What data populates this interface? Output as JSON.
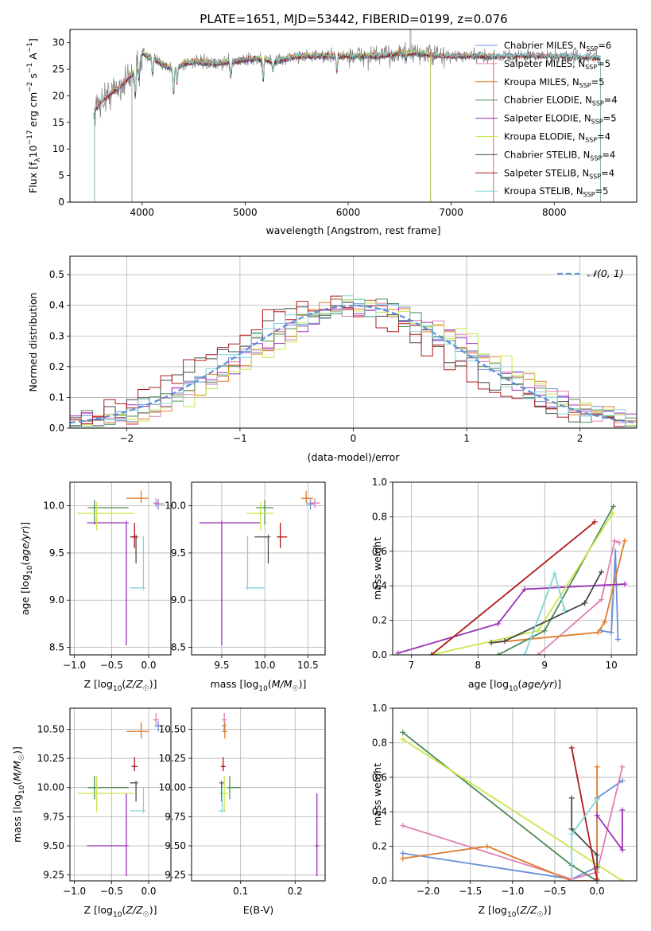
{
  "figure": {
    "title": "PLATE=1651, MJD=53442, FIBERID=0199, z=0.076"
  },
  "colors": {
    "Chabrier MILES": "#6a8fd8",
    "Salpeter MILES": "#e07fb4",
    "Kroupa MILES": "#e07b2a",
    "Chabrier ELODIE": "#4f8a58",
    "Salpeter ELODIE": "#9b30b8",
    "Kroupa ELODIE": "#c9e64a",
    "Chabrier STELIB": "#4a4a4a",
    "Salpeter STELIB": "#b01919",
    "Kroupa STELIB": "#7fd6d8",
    "gaussian": "#5b8fd6"
  },
  "chart_data": [
    {
      "id": "spectrum",
      "type": "line",
      "title": "PLATE=1651, MJD=53442, FIBERID=0199, z=0.076",
      "xlabel": "wavelength [Angstrom, rest frame]",
      "ylabel_parts": [
        "Flux [f",
        "λ",
        "10",
        "−17",
        " erg cm",
        "−2",
        " s",
        "−1",
        " A",
        "−1",
        "]"
      ],
      "xlim": [
        3300,
        8800
      ],
      "ylim": [
        0,
        32.5
      ],
      "xticks": [
        4000,
        5000,
        6000,
        7000,
        8000
      ],
      "yticks": [
        0,
        5,
        10,
        15,
        20,
        25,
        30
      ],
      "grid": false,
      "legend_position": "upper right",
      "legend": [
        {
          "model": "Chabrier MILES",
          "label": "Chabrier MILES, N",
          "sub": "SSP",
          "n": "=6"
        },
        {
          "model": "Salpeter MILES",
          "label": "Salpeter MILES, N",
          "sub": "SSP",
          "n": "=5"
        },
        {
          "model": "Kroupa MILES",
          "label": "Kroupa MILES, N",
          "sub": "SSP",
          "n": "=5"
        },
        {
          "model": "Chabrier ELODIE",
          "label": "Chabrier ELODIE, N",
          "sub": "SSP",
          "n": "=4"
        },
        {
          "model": "Salpeter ELODIE",
          "label": "Salpeter ELODIE, N",
          "sub": "SSP",
          "n": "=5"
        },
        {
          "model": "Kroupa ELODIE",
          "label": "Kroupa ELODIE, N",
          "sub": "SSP",
          "n": "=4"
        },
        {
          "model": "Chabrier STELIB",
          "label": "Chabrier STELIB, N",
          "sub": "SSP",
          "n": "=4"
        },
        {
          "model": "Salpeter STELIB",
          "label": "Salpeter STELIB, N",
          "sub": "SSP",
          "n": "=4"
        },
        {
          "model": "Kroupa STELIB",
          "label": "Kroupa STELIB, N",
          "sub": "SSP",
          "n": "=5"
        }
      ],
      "observed_continuum": {
        "wavelength": [
          3530,
          3600,
          3700,
          3800,
          3900,
          3960,
          4000,
          4100,
          4200,
          4300,
          4400,
          4500,
          4700,
          4900,
          5100,
          5300,
          5500,
          5700,
          5900,
          6100,
          6300,
          6500,
          6700,
          6900,
          7100,
          7300,
          7450,
          7600,
          7800,
          8000,
          8200,
          8400
        ],
        "flux": [
          17,
          19,
          20.5,
          22,
          24,
          25.5,
          28,
          27,
          26,
          25,
          26,
          26.5,
          26,
          26.5,
          27,
          26.5,
          27.5,
          27.5,
          27.5,
          27.5,
          27.5,
          28,
          28,
          27.5,
          27.5,
          27.5,
          27.5,
          27.5,
          27.5,
          27.5,
          27.3,
          27.2
        ]
      },
      "absorption_lines": [
        {
          "w": 3934,
          "depth": 5
        },
        {
          "w": 3969,
          "depth": 3
        },
        {
          "w": 4102,
          "depth": 3
        },
        {
          "w": 4305,
          "depth": 5
        },
        {
          "w": 4340,
          "depth": 3
        },
        {
          "w": 4861,
          "depth": 3
        },
        {
          "w": 5175,
          "depth": 4
        },
        {
          "w": 5270,
          "depth": 2
        },
        {
          "w": 5890,
          "depth": 3
        },
        {
          "w": 6563,
          "depth": 1
        }
      ],
      "model_ranges": [
        {
          "model": "Chabrier MILES",
          "start": 3540,
          "end": 7410
        },
        {
          "model": "Salpeter MILES",
          "start": 3540,
          "end": 7410
        },
        {
          "model": "Kroupa MILES",
          "start": 3540,
          "end": 7410
        },
        {
          "model": "Chabrier ELODIE",
          "start": 3900,
          "end": 6800
        },
        {
          "model": "Salpeter ELODIE",
          "start": 3900,
          "end": 6800
        },
        {
          "model": "Kroupa ELODIE",
          "start": 3900,
          "end": 6800
        },
        {
          "model": "Chabrier STELIB",
          "start": 3540,
          "end": 8450
        },
        {
          "model": "Salpeter STELIB",
          "start": 3540,
          "end": 8450
        },
        {
          "model": "Kroupa STELIB",
          "start": 3540,
          "end": 8450
        }
      ]
    },
    {
      "id": "residuals",
      "type": "line",
      "xlabel": "(data-model)/error",
      "ylabel": "Normed distribution",
      "xlim": [
        -2.5,
        2.5
      ],
      "ylim": [
        0,
        0.56
      ],
      "xticks": [
        -2,
        -1,
        0,
        1,
        2
      ],
      "xtick_labels": [
        "−2",
        "−1",
        "0",
        "1",
        "2"
      ],
      "yticks": [
        0.0,
        0.1,
        0.2,
        0.3,
        0.4,
        0.5
      ],
      "ytick_labels": [
        "0.0",
        "0.1",
        "0.2",
        "0.3",
        "0.4",
        "0.5"
      ],
      "grid": true,
      "legend_position": "upper right",
      "gaussian_label": "𝒩(0, 1)",
      "bin_width": 0.1
    },
    {
      "id": "age_vs_Z",
      "type": "scatter",
      "xlabel": "Z [log10(Z/Z☉)]",
      "ylabel": "age [log10(age/yr)]",
      "xlim": [
        -1.06,
        0.3
      ],
      "ylim": [
        8.42,
        10.25
      ],
      "xticks": [
        -1.0,
        -0.5,
        0.0
      ],
      "xtick_labels": [
        "−1.0",
        "−0.5",
        "0.0"
      ],
      "yticks": [
        8.5,
        9.0,
        9.5,
        10.0
      ],
      "ytick_labels": [
        "8.5",
        "9.0",
        "9.5",
        "10.0"
      ],
      "grid": true
    },
    {
      "id": "age_vs_mass",
      "type": "scatter",
      "xlabel": "mass [log10(M/M☉)]",
      "ylabel": "",
      "xlim": [
        9.15,
        10.7
      ],
      "ylim": [
        8.42,
        10.25
      ],
      "xticks": [
        9.5,
        10.0,
        10.5
      ],
      "xtick_labels": [
        "9.5",
        "10.0",
        "10.5"
      ],
      "yticks": [
        8.5,
        9.0,
        9.5,
        10.0
      ],
      "ytick_labels": [
        "8.5",
        "9.0",
        "9.5",
        "10.0"
      ],
      "grid": true
    },
    {
      "id": "weight_vs_age",
      "type": "line",
      "xlabel": "age [log10(age/yr)]",
      "ylabel": "mass weight",
      "xlim": [
        6.72,
        10.38
      ],
      "ylim": [
        0,
        1
      ],
      "xticks": [
        7,
        8,
        9,
        10
      ],
      "yticks": [
        0.0,
        0.2,
        0.4,
        0.6,
        0.8,
        1.0
      ],
      "ytick_labels": [
        "0.0",
        "0.2",
        "0.4",
        "0.6",
        "0.8",
        "1.0"
      ],
      "grid": true
    },
    {
      "id": "mass_vs_Z",
      "type": "scatter",
      "xlabel": "Z [log10(Z/Z☉)]",
      "ylabel": "mass [log10(M/M☉)]",
      "xlim": [
        -1.06,
        0.3
      ],
      "ylim": [
        9.2,
        10.68
      ],
      "xticks": [
        -1.0,
        -0.5,
        0.0
      ],
      "xtick_labels": [
        "−1.0",
        "−0.5",
        "0.0"
      ],
      "yticks": [
        9.25,
        9.5,
        9.75,
        10.0,
        10.25,
        10.5
      ],
      "ytick_labels": [
        "9.25",
        "9.50",
        "9.75",
        "10.00",
        "10.25",
        "10.50"
      ],
      "grid": true
    },
    {
      "id": "mass_vs_EBV",
      "type": "scatter",
      "xlabel": "E(B-V)",
      "ylabel": "",
      "xlim": [
        0.01,
        0.255
      ],
      "ylim": [
        9.2,
        10.68
      ],
      "xticks": [
        0.1,
        0.2
      ],
      "xtick_labels": [
        "0.1",
        "0.2"
      ],
      "yticks": [
        9.25,
        9.5,
        9.75,
        10.0,
        10.25,
        10.5
      ],
      "ytick_labels": [
        "9.25",
        "9.50",
        "9.75",
        "10.00",
        "10.25",
        "10.50"
      ],
      "grid": true
    },
    {
      "id": "weight_vs_Z",
      "type": "line",
      "xlabel": "Z [log10(Z/Z☉)]",
      "ylabel": "mass weight",
      "xlim": [
        -2.42,
        0.47
      ],
      "ylim": [
        0,
        1
      ],
      "xticks": [
        -2.0,
        -1.5,
        -1.0,
        -0.5,
        0.0
      ],
      "xtick_labels": [
        "−2.0",
        "−1.5",
        "−1.0",
        "−0.5",
        "0.0"
      ],
      "yticks": [
        0.0,
        0.2,
        0.4,
        0.6,
        0.8,
        1.0
      ],
      "ytick_labels": [
        "0.0",
        "0.2",
        "0.4",
        "0.6",
        "0.8",
        "1.0"
      ],
      "grid": true
    }
  ],
  "fits": [
    {
      "model": "Chabrier MILES",
      "Z": 0.13,
      "Z_err": [
        0.05,
        0.08
      ],
      "age": 10.02,
      "age_err": [
        0.06,
        0.05
      ],
      "mass": 10.53,
      "mass_err": [
        0.05,
        0.04
      ],
      "ebv": 0.07,
      "ebv_err": [
        0.004,
        0.004
      ],
      "ssp_age": [
        9.85,
        10.0,
        10.06,
        10.1
      ],
      "ssp_weight": [
        0.14,
        0.13,
        0.6,
        0.09
      ],
      "ssp_Z": [
        -2.3,
        -0.3,
        0.0,
        0.0,
        0.3
      ],
      "ssp_Zw": [
        0.16,
        0.01,
        0.08,
        0.48,
        0.58
      ]
    },
    {
      "model": "Salpeter MILES",
      "Z": 0.1,
      "Z_err": [
        0.04,
        0.04
      ],
      "age": 10.03,
      "age_err": [
        0.05,
        0.05
      ],
      "mass": 10.58,
      "mass_err": [
        0.06,
        0.06
      ],
      "ebv": 0.07,
      "ebv_err": [
        0.004,
        0.004
      ],
      "ssp_age": [
        8.9,
        9.85,
        10.05,
        10.12
      ],
      "ssp_weight": [
        0.0,
        0.32,
        0.66,
        0.65
      ],
      "ssp_Z": [
        -2.3,
        -0.3,
        0.0,
        0.3
      ],
      "ssp_Zw": [
        0.32,
        0.01,
        0.05,
        0.66
      ]
    },
    {
      "model": "Kroupa MILES",
      "Z": -0.1,
      "Z_err": [
        0.2,
        0.1
      ],
      "age": 10.08,
      "age_err": [
        0.05,
        0.08
      ],
      "mass": 10.48,
      "mass_err": [
        0.06,
        0.08
      ],
      "ebv": 0.071,
      "ebv_err": [
        0.004,
        0.004
      ],
      "ssp_age": [
        8.2,
        9.8,
        9.9,
        10.2
      ],
      "ssp_weight": [
        0.07,
        0.13,
        0.19,
        0.66
      ],
      "ssp_Z": [
        -2.3,
        -1.3,
        -0.3,
        0.0,
        0.0
      ],
      "ssp_Zw": [
        0.13,
        0.2,
        0.0,
        0.0,
        0.66
      ]
    },
    {
      "model": "Chabrier ELODIE",
      "Z": -0.73,
      "Z_err": [
        0.09,
        0.46
      ],
      "age": 9.98,
      "age_err": [
        0.18,
        0.08
      ],
      "mass": 10.0,
      "mass_err": [
        0.1,
        0.1
      ],
      "ebv": 0.08,
      "ebv_err": [
        0.003,
        0.02
      ],
      "ssp_age": [
        8.3,
        9.0,
        10.03
      ],
      "ssp_weight": [
        0.0,
        0.14,
        0.86
      ],
      "ssp_Z": [
        -2.3,
        -0.3,
        0.0
      ],
      "ssp_Zw": [
        0.86,
        0.09,
        0.0
      ]
    },
    {
      "model": "Salpeter ELODIE",
      "Z": -0.3,
      "Z_err": [
        0.53,
        0.0
      ],
      "age": 9.82,
      "age_err": [
        1.3,
        0.0
      ],
      "mass": 9.5,
      "mass_err": [
        0.26,
        0.45
      ],
      "ebv": 0.24,
      "ebv_err": [
        0.0,
        0.0
      ],
      "ssp_age": [
        6.8,
        8.3,
        8.7,
        10.2
      ],
      "ssp_weight": [
        0.01,
        0.18,
        0.38,
        0.41
      ],
      "ssp_Z": [
        0.0,
        0.3,
        0.3
      ],
      "ssp_Zw": [
        0.38,
        0.18,
        0.41
      ]
    },
    {
      "model": "Kroupa ELODIE",
      "Z": -0.7,
      "Z_err": [
        0.26,
        0.5
      ],
      "age": 9.92,
      "age_err": [
        0.18,
        0.12
      ],
      "mass": 9.95,
      "mass_err": [
        0.16,
        0.15
      ],
      "ebv": 0.07,
      "ebv_err": [
        0.01,
        0.01
      ],
      "ssp_age": [
        7.3,
        8.9,
        10.02
      ],
      "ssp_weight": [
        0.0,
        0.14,
        0.82
      ],
      "ssp_Z": [
        -2.3,
        0.3
      ],
      "ssp_Zw": [
        0.82,
        0.0
      ]
    },
    {
      "model": "Chabrier STELIB",
      "Z": -0.17,
      "Z_err": [
        0.08,
        0.0
      ],
      "age": 9.67,
      "age_err": [
        0.28,
        0.0
      ],
      "mass": 10.04,
      "mass_err": [
        0.16,
        0.0
      ],
      "ebv": 0.065,
      "ebv_err": [
        0.0,
        0.0
      ],
      "ssp_age": [
        8.2,
        8.4,
        9.6,
        9.85
      ],
      "ssp_weight": [
        0.07,
        0.08,
        0.3,
        0.48
      ],
      "ssp_Z": [
        -0.3,
        -0.3,
        0.0,
        0.0
      ],
      "ssp_Zw": [
        0.48,
        0.3,
        0.15,
        0.08
      ]
    },
    {
      "model": "Salpeter STELIB",
      "Z": -0.19,
      "Z_err": [
        0.04,
        0.04
      ],
      "age": 9.67,
      "age_err": [
        0.12,
        0.15
      ],
      "mass": 10.18,
      "mass_err": [
        0.04,
        0.08
      ],
      "ebv": 0.068,
      "ebv_err": [
        0.004,
        0.004
      ],
      "ssp_age": [
        7.3,
        9.75
      ],
      "ssp_weight": [
        0.0,
        0.77
      ],
      "ssp_Z": [
        -0.3,
        0.0
      ],
      "ssp_Zw": [
        0.77,
        0.01
      ]
    },
    {
      "model": "Kroupa STELIB",
      "Z": -0.07,
      "Z_err": [
        0.18,
        0.0
      ],
      "age": 9.13,
      "age_err": [
        0.0,
        0.55
      ],
      "mass": 9.8,
      "mass_err": [
        0.0,
        0.2
      ],
      "ebv": 0.066,
      "ebv_err": [
        0.006,
        0.006
      ],
      "ssp_age": [
        8.7,
        9.15,
        9.3
      ],
      "ssp_weight": [
        0.0,
        0.47,
        0.26
      ],
      "ssp_Z": [
        -0.3,
        -0.3,
        0.0
      ],
      "ssp_Zw": [
        0.0,
        0.27,
        0.47
      ]
    }
  ]
}
